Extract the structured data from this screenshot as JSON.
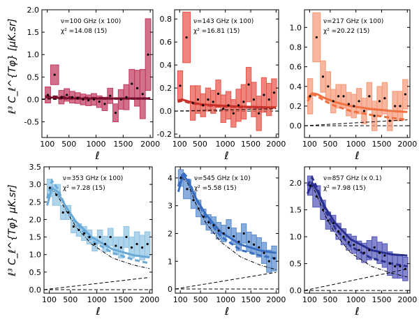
{
  "figure": {
    "ylabel_top": "ℓ³ C_ℓ^{Tφ}   [μK.sr]",
    "ylabel_bottom": "ℓ³ C_ℓ^{Tφ}   μK.sr]",
    "xlabel": "ℓ"
  },
  "chart_data": [
    {
      "type": "bar",
      "panel": "100 GHz",
      "annotation_freq": "ν=100 GHz  (x 100)",
      "annotation_chi2": "χ² =14.08 (15)",
      "color": "#c03a5e",
      "curve_color": "#7a1030",
      "xlim": [
        0,
        2050
      ],
      "ylim": [
        -0.85,
        2.0
      ],
      "xticks": [
        100,
        500,
        1000,
        1500,
        2000
      ],
      "xtick_labels": [
        "100",
        "500",
        "1000",
        "1500",
        "2000"
      ],
      "yticks": [
        -0.5,
        0.0,
        0.5,
        1.0,
        1.5,
        2.0
      ],
      "ytick_labels": [
        "-0.5",
        "0.0",
        "0.5",
        "1.0",
        "1.5",
        "2.0"
      ],
      "xlabel": "ℓ",
      "bins": [
        [
          60,
          160
        ],
        [
          160,
          310
        ],
        [
          310,
          410
        ],
        [
          410,
          510
        ],
        [
          510,
          610
        ],
        [
          610,
          710
        ],
        [
          710,
          810
        ],
        [
          810,
          910
        ],
        [
          910,
          1010
        ],
        [
          1010,
          1110
        ],
        [
          1110,
          1210
        ],
        [
          1210,
          1310
        ],
        [
          1310,
          1410
        ],
        [
          1410,
          1510
        ],
        [
          1510,
          1610
        ],
        [
          1610,
          1710
        ],
        [
          1710,
          1810
        ],
        [
          1810,
          1910
        ],
        [
          1910,
          2010
        ]
      ],
      "values": [
        0.1,
        0.55,
        0.05,
        0.1,
        0.05,
        0.03,
        0.0,
        -0.02,
        0.0,
        -0.05,
        -0.1,
        0.08,
        -0.3,
        0.0,
        0.05,
        0.35,
        0.25,
        0.12,
        1.0
      ],
      "errors": [
        0.18,
        0.22,
        0.15,
        0.14,
        0.13,
        0.12,
        0.12,
        0.12,
        0.13,
        0.13,
        0.15,
        0.17,
        0.2,
        0.22,
        0.28,
        0.32,
        0.4,
        0.55,
        0.8
      ],
      "model_x": [
        60,
        200,
        400,
        700,
        1000,
        1500,
        2000
      ],
      "model_y": [
        0.05,
        0.04,
        0.03,
        0.02,
        0.02,
        0.02,
        0.02
      ],
      "dashed_x": [
        60,
        300,
        600,
        1000,
        1500,
        2000
      ],
      "dashed_y": [
        0.07,
        0.06,
        0.04,
        0.03,
        0.02,
        0.02
      ],
      "shot_x": [
        0,
        2000
      ],
      "shot_y": [
        0.01,
        0.04
      ]
    },
    {
      "type": "bar",
      "panel": "143 GHz",
      "annotation_freq": "ν=143 GHz  (x 100)",
      "annotation_chi2": "χ² =16.81 (15)",
      "color": "#e8564a",
      "curve_color": "#c8302a",
      "xlim": [
        0,
        2050
      ],
      "ylim": [
        -0.23,
        0.88
      ],
      "xticks": [
        100,
        500,
        1000,
        1500,
        2000
      ],
      "xtick_labels": [
        "100",
        "500",
        "1000",
        "1500",
        "2000"
      ],
      "yticks": [
        -0.2,
        0.0,
        0.2,
        0.4,
        0.6,
        0.8
      ],
      "ytick_labels": [
        "-0.2",
        "0.0",
        "0.2",
        "0.4",
        "0.6",
        "0.8"
      ],
      "xlabel": "ℓ",
      "bins": [
        [
          60,
          160
        ],
        [
          160,
          310
        ],
        [
          310,
          410
        ],
        [
          410,
          510
        ],
        [
          510,
          610
        ],
        [
          610,
          710
        ],
        [
          710,
          810
        ],
        [
          810,
          910
        ],
        [
          910,
          1010
        ],
        [
          1010,
          1110
        ],
        [
          1110,
          1210
        ],
        [
          1210,
          1310
        ],
        [
          1310,
          1410
        ],
        [
          1410,
          1510
        ],
        [
          1510,
          1610
        ],
        [
          1610,
          1710
        ],
        [
          1710,
          1810
        ],
        [
          1810,
          1910
        ],
        [
          1910,
          2010
        ]
      ],
      "values": [
        0.22,
        0.64,
        0.07,
        0.1,
        0.05,
        0.1,
        0.08,
        0.15,
        0.02,
        0.05,
        -0.02,
        0.05,
        0.08,
        0.23,
        0.1,
        -0.02,
        0.14,
        0.1,
        0.16
      ],
      "errors": [
        0.13,
        0.22,
        0.15,
        0.12,
        0.1,
        0.1,
        0.1,
        0.12,
        0.12,
        0.12,
        0.12,
        0.14,
        0.15,
        0.15,
        0.15,
        0.15,
        0.15,
        0.14,
        0.12
      ],
      "model_x": [
        60,
        150,
        300,
        500,
        800,
        1200,
        1600,
        2000
      ],
      "model_y": [
        0.09,
        0.1,
        0.08,
        0.06,
        0.05,
        0.04,
        0.035,
        0.03
      ],
      "dashed_x": [
        60,
        150,
        300,
        600,
        1000,
        1500,
        2000
      ],
      "dashed_y": [
        0.08,
        0.09,
        0.07,
        0.05,
        0.04,
        0.03,
        0.03
      ],
      "shot_x": [
        0,
        2000
      ],
      "shot_y": [
        0.0,
        0.02
      ]
    },
    {
      "type": "bar",
      "panel": "217 GHz",
      "annotation_freq": "ν=217 GHz  (x 100)",
      "annotation_chi2": "χ² =20.22 (15)",
      "color": "#f59a7a",
      "curve_color": "#f07040",
      "xlim": [
        0,
        2050
      ],
      "ylim": [
        -0.12,
        1.18
      ],
      "xticks": [
        100,
        500,
        1000,
        1500,
        2000
      ],
      "xtick_labels": [
        "100",
        "500",
        "1000",
        "1500",
        "2000"
      ],
      "yticks": [
        0.0,
        0.2,
        0.4,
        0.6,
        0.8,
        1.0
      ],
      "ytick_labels": [
        "0.0",
        "0.2",
        "0.4",
        "0.6",
        "0.8",
        "1.0"
      ],
      "xlabel": "ℓ",
      "bins": [
        [
          60,
          160
        ],
        [
          160,
          310
        ],
        [
          310,
          410
        ],
        [
          410,
          510
        ],
        [
          510,
          610
        ],
        [
          610,
          710
        ],
        [
          710,
          810
        ],
        [
          810,
          910
        ],
        [
          910,
          1010
        ],
        [
          1010,
          1110
        ],
        [
          1110,
          1210
        ],
        [
          1210,
          1310
        ],
        [
          1310,
          1410
        ],
        [
          1410,
          1510
        ],
        [
          1510,
          1610
        ],
        [
          1610,
          1710
        ],
        [
          1710,
          1810
        ],
        [
          1810,
          1910
        ],
        [
          1910,
          2010
        ]
      ],
      "values": [
        0.3,
        0.9,
        0.5,
        0.4,
        0.25,
        0.3,
        0.3,
        0.22,
        0.2,
        0.25,
        0.15,
        0.3,
        0.1,
        0.25,
        0.28,
        0.05,
        0.2,
        0.2,
        0.32
      ],
      "errors": [
        0.18,
        0.25,
        0.16,
        0.15,
        0.12,
        0.12,
        0.12,
        0.12,
        0.12,
        0.13,
        0.13,
        0.14,
        0.15,
        0.15,
        0.16,
        0.1,
        0.15,
        0.15,
        0.15
      ],
      "model_x": [
        60,
        150,
        250,
        400,
        600,
        900,
        1300,
        1700,
        2000
      ],
      "model_y": [
        0.28,
        0.33,
        0.32,
        0.28,
        0.24,
        0.2,
        0.17,
        0.15,
        0.14
      ],
      "dashed_x": [
        60,
        150,
        250,
        400,
        600,
        900,
        1300,
        1700,
        2000
      ],
      "dashed_y": [
        0.25,
        0.32,
        0.3,
        0.25,
        0.2,
        0.15,
        0.11,
        0.08,
        0.06
      ],
      "shot_x": [
        0,
        2000
      ],
      "shot_y": [
        0.0,
        0.06
      ]
    },
    {
      "type": "bar",
      "panel": "353 GHz",
      "annotation_freq": "ν=353 GHz  (x 100)",
      "annotation_chi2": "χ² =7.28 (15)",
      "color": "#8fc4e4",
      "curve_color": "#6aa8d6",
      "xlim": [
        0,
        2050
      ],
      "ylim": [
        -0.1,
        3.5
      ],
      "xticks": [
        100,
        500,
        1000,
        1500,
        2000
      ],
      "xtick_labels": [
        "100",
        "500",
        "1000",
        "1500",
        "2000"
      ],
      "yticks": [
        0.0,
        0.5,
        1.0,
        1.5,
        2.0,
        2.5,
        3.0,
        3.5
      ],
      "ytick_labels": [
        "0.0",
        "0.5",
        "1.0",
        "1.5",
        "2.0",
        "2.5",
        "3.0",
        "3.5"
      ],
      "xlabel": "ℓ",
      "bins": [
        [
          60,
          160
        ],
        [
          160,
          310
        ],
        [
          310,
          410
        ],
        [
          410,
          510
        ],
        [
          510,
          610
        ],
        [
          610,
          710
        ],
        [
          710,
          810
        ],
        [
          810,
          910
        ],
        [
          910,
          1010
        ],
        [
          1010,
          1110
        ],
        [
          1110,
          1210
        ],
        [
          1210,
          1310
        ],
        [
          1310,
          1410
        ],
        [
          1410,
          1510
        ],
        [
          1510,
          1610
        ],
        [
          1610,
          1710
        ],
        [
          1710,
          1810
        ],
        [
          1810,
          1910
        ],
        [
          1910,
          2010
        ]
      ],
      "values": [
        2.9,
        2.7,
        2.2,
        2.2,
        1.8,
        1.7,
        1.6,
        1.5,
        1.3,
        1.5,
        1.3,
        1.5,
        1.25,
        1.2,
        1.5,
        1.2,
        1.3,
        1.2,
        1.3
      ],
      "errors": [
        0.25,
        0.3,
        0.2,
        0.2,
        0.18,
        0.18,
        0.2,
        0.2,
        0.2,
        0.2,
        0.22,
        0.25,
        0.25,
        0.3,
        0.3,
        0.3,
        0.35,
        0.35,
        0.35
      ],
      "model_x": [
        60,
        150,
        250,
        400,
        600,
        900,
        1300,
        1700,
        2000
      ],
      "model_y": [
        2.4,
        2.9,
        2.8,
        2.4,
        1.95,
        1.5,
        1.15,
        0.98,
        0.92
      ],
      "dashed_x": [
        60,
        150,
        250,
        400,
        600,
        900,
        1300,
        1700,
        2000
      ],
      "dashed_y": [
        2.6,
        3.1,
        2.9,
        2.4,
        1.9,
        1.4,
        1.05,
        0.85,
        0.75
      ],
      "dotdash_x": [
        60,
        150,
        250,
        400,
        600,
        900,
        1300,
        1700,
        2000
      ],
      "dotdash_y": [
        2.4,
        2.85,
        2.7,
        2.3,
        1.8,
        1.3,
        0.9,
        0.7,
        0.6
      ],
      "shot_x": [
        0,
        2000
      ],
      "shot_y": [
        0.0,
        0.35
      ]
    },
    {
      "type": "bar",
      "panel": "545 GHz",
      "annotation_freq": "ν=545 GHz  (x 10)",
      "annotation_chi2": "χ² =5.58 (15)",
      "color": "#5b8ed0",
      "curve_color": "#3a6ec0",
      "xlim": [
        0,
        2050
      ],
      "ylim": [
        -0.15,
        4.4
      ],
      "xticks": [
        100,
        500,
        1000,
        1500,
        2000
      ],
      "xtick_labels": [
        "100",
        "500",
        "1000",
        "1500",
        "2000"
      ],
      "yticks": [
        0,
        1,
        2,
        3,
        4
      ],
      "ytick_labels": [
        "0",
        "1",
        "2",
        "3",
        "4"
      ],
      "xlabel": "ℓ",
      "bins": [
        [
          60,
          160
        ],
        [
          160,
          310
        ],
        [
          310,
          410
        ],
        [
          410,
          510
        ],
        [
          510,
          610
        ],
        [
          610,
          710
        ],
        [
          710,
          810
        ],
        [
          810,
          910
        ],
        [
          910,
          1010
        ],
        [
          1010,
          1110
        ],
        [
          1110,
          1210
        ],
        [
          1210,
          1310
        ],
        [
          1310,
          1410
        ],
        [
          1410,
          1510
        ],
        [
          1510,
          1610
        ],
        [
          1610,
          1710
        ],
        [
          1710,
          1810
        ],
        [
          1810,
          1910
        ],
        [
          1910,
          2010
        ]
      ],
      "values": [
        4.0,
        3.6,
        3.2,
        2.9,
        2.6,
        2.4,
        2.3,
        2.1,
        2.0,
        2.2,
        1.9,
        1.7,
        2.0,
        1.7,
        1.6,
        1.5,
        1.3,
        1.0,
        1.1
      ],
      "errors": [
        0.3,
        0.35,
        0.3,
        0.3,
        0.28,
        0.28,
        0.3,
        0.3,
        0.3,
        0.3,
        0.3,
        0.32,
        0.35,
        0.35,
        0.35,
        0.35,
        0.38,
        0.4,
        0.45
      ],
      "model_x": [
        60,
        150,
        250,
        400,
        600,
        900,
        1300,
        1700,
        2000
      ],
      "model_y": [
        3.5,
        4.1,
        3.9,
        3.3,
        2.7,
        2.05,
        1.6,
        1.38,
        1.3
      ],
      "dashed_x": [
        60,
        150,
        250,
        400,
        600,
        900,
        1300,
        1700,
        2000
      ],
      "dashed_y": [
        3.7,
        4.2,
        4.0,
        3.3,
        2.6,
        1.9,
        1.4,
        1.2,
        1.1
      ],
      "dotdash_x": [
        60,
        150,
        250,
        400,
        600,
        900,
        1300,
        1700,
        2000
      ],
      "dotdash_y": [
        3.5,
        4.0,
        3.8,
        3.1,
        2.4,
        1.7,
        1.15,
        0.85,
        0.7
      ],
      "shot_x": [
        0,
        2000
      ],
      "shot_y": [
        0.0,
        0.6
      ]
    },
    {
      "type": "bar",
      "panel": "857 GHz",
      "annotation_freq": "ν=857 GHz  (x 0.1)",
      "annotation_chi2": "χ² =7.98 (15)",
      "color": "#5358b8",
      "curve_color": "#2a3090",
      "xlim": [
        0,
        2050
      ],
      "ylim": [
        -0.05,
        2.3
      ],
      "xticks": [
        100,
        500,
        1000,
        1500,
        2000
      ],
      "xtick_labels": [
        "100",
        "500",
        "1000",
        "1500",
        "2000"
      ],
      "yticks": [
        0.0,
        0.5,
        1.0,
        1.5,
        2.0
      ],
      "ytick_labels": [
        "0.0",
        "0.5",
        "1.0",
        "1.5",
        "2.0"
      ],
      "xlabel": "ℓ",
      "bins": [
        [
          60,
          160
        ],
        [
          160,
          310
        ],
        [
          310,
          410
        ],
        [
          410,
          510
        ],
        [
          510,
          610
        ],
        [
          610,
          710
        ],
        [
          710,
          810
        ],
        [
          810,
          910
        ],
        [
          910,
          1010
        ],
        [
          1010,
          1110
        ],
        [
          1110,
          1210
        ],
        [
          1210,
          1310
        ],
        [
          1310,
          1410
        ],
        [
          1410,
          1510
        ],
        [
          1510,
          1610
        ],
        [
          1610,
          1710
        ],
        [
          1710,
          1810
        ],
        [
          1810,
          1910
        ],
        [
          1910,
          2010
        ]
      ],
      "values": [
        1.95,
        1.75,
        1.5,
        1.3,
        1.25,
        1.1,
        1.0,
        0.9,
        0.85,
        0.75,
        0.7,
        0.75,
        0.8,
        0.7,
        0.65,
        0.5,
        0.45,
        0.45,
        0.4
      ],
      "errors": [
        0.18,
        0.2,
        0.18,
        0.16,
        0.15,
        0.15,
        0.15,
        0.15,
        0.16,
        0.17,
        0.18,
        0.18,
        0.2,
        0.2,
        0.22,
        0.22,
        0.22,
        0.22,
        0.22
      ],
      "model_x": [
        60,
        150,
        250,
        400,
        600,
        900,
        1300,
        1700,
        2000
      ],
      "model_y": [
        1.8,
        2.0,
        1.85,
        1.55,
        1.25,
        0.95,
        0.75,
        0.67,
        0.65
      ],
      "dashed_x": [
        60,
        150,
        250,
        400,
        600,
        900,
        1300,
        1700,
        2000
      ],
      "dashed_y": [
        1.95,
        2.1,
        1.9,
        1.5,
        1.15,
        0.82,
        0.6,
        0.5,
        0.45
      ],
      "dotdash_x": [
        60,
        150,
        250,
        400,
        600,
        900,
        1300,
        1700,
        2000
      ],
      "dotdash_y": [
        1.8,
        1.95,
        1.75,
        1.4,
        1.05,
        0.7,
        0.45,
        0.32,
        0.25
      ],
      "shot_x": [
        0,
        2000
      ],
      "shot_y": [
        0.0,
        0.4
      ]
    }
  ]
}
